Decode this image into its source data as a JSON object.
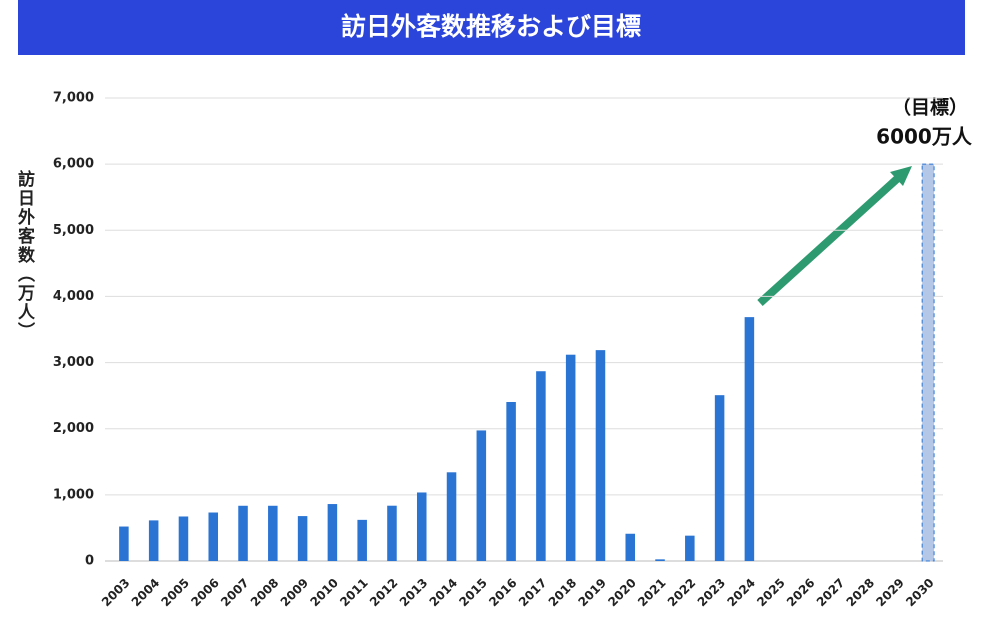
{
  "chart_data": {
    "type": "bar",
    "title": "訪日外客数推移および目標",
    "y_label": "訪日外客数（万人）",
    "annotation": [
      "（目標）",
      "6000万人"
    ],
    "categories": [
      "2003",
      "2004",
      "2005",
      "2006",
      "2007",
      "2008",
      "2009",
      "2010",
      "2011",
      "2012",
      "2013",
      "2014",
      "2015",
      "2016",
      "2017",
      "2018",
      "2019",
      "2020",
      "2021",
      "2022",
      "2023",
      "2024",
      "2025",
      "2026",
      "2027",
      "2028",
      "2029",
      "2030"
    ],
    "values": [
      521,
      614,
      673,
      733,
      835,
      835,
      679,
      861,
      622,
      836,
      1036,
      1341,
      1974,
      2404,
      2869,
      3119,
      3188,
      412,
      25,
      383,
      2507,
      3687,
      null,
      null,
      null,
      null,
      null,
      6000
    ],
    "color": "#2a74d4",
    "target_color": "#b4c7e7",
    "ylim": [
      0,
      7000
    ],
    "yticks": [
      0,
      {
        "value": 1000,
        "label": "1,000"
      },
      {
        "value": 2000,
        "label": "2,000"
      },
      {
        "value": 3000,
        "label": "3,000"
      },
      {
        "value": 4000,
        "label": "4,000"
      },
      {
        "value": 5000,
        "label": "5,000"
      },
      {
        "value": 6000,
        "label": "6,000"
      },
      {
        "value": 7000,
        "label": "7,000"
      }
    ],
    "grid": true
  }
}
